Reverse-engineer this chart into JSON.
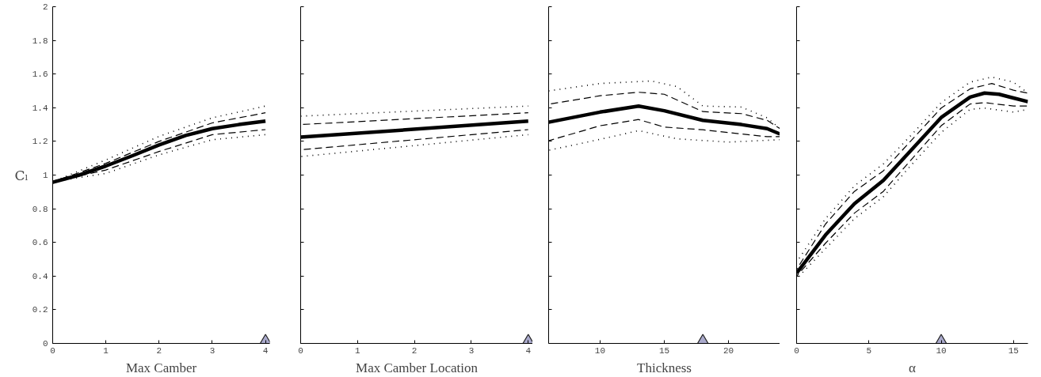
{
  "chart_data": [
    {
      "type": "line",
      "xlabel": "Max Camber",
      "ylabel": "Cₗ",
      "xlim": [
        0,
        4.08
      ],
      "xticks": [
        0,
        1,
        2,
        3,
        4
      ],
      "ylim": [
        0,
        2
      ],
      "yticks": [
        0,
        0.2,
        0.4,
        0.6,
        0.8,
        1,
        1.2,
        1.4,
        1.6,
        1.8,
        2
      ],
      "grid": false,
      "marker": "none",
      "series": [
        {
          "color": "#000000",
          "line_style": "solid",
          "x": [
            0,
            0.5,
            1,
            1.5,
            2,
            2.5,
            3,
            3.5,
            4
          ],
          "values": [
            0.957,
            1.0,
            1.054,
            1.115,
            1.179,
            1.235,
            1.276,
            1.3,
            1.32
          ]
        },
        {
          "color": "#000000",
          "line_style": "dashed",
          "x": [
            0,
            1,
            2,
            3,
            4
          ],
          "values": [
            0.96,
            1.07,
            1.2,
            1.31,
            1.37
          ]
        },
        {
          "color": "#000000",
          "line_style": "dashed",
          "x": [
            0,
            1,
            2,
            3,
            4
          ],
          "values": [
            0.96,
            1.03,
            1.14,
            1.24,
            1.27
          ]
        },
        {
          "color": "#000000",
          "line_style": "dotted",
          "x": [
            0,
            1,
            2,
            3,
            4
          ],
          "values": [
            0.96,
            1.09,
            1.23,
            1.34,
            1.41
          ]
        },
        {
          "color": "#000000",
          "line_style": "dotted",
          "x": [
            0,
            1,
            2,
            3,
            4
          ],
          "values": [
            0.96,
            1.01,
            1.12,
            1.21,
            1.24
          ]
        },
        {
          "type": "scatter",
          "marker": "triangle",
          "color": "#aaaacc",
          "x": [
            4
          ],
          "values": [
            0
          ]
        }
      ]
    },
    {
      "type": "line",
      "xlabel": "Max Camber Location",
      "xlim": [
        0,
        4.08
      ],
      "xticks": [
        0,
        1,
        2,
        3,
        4
      ],
      "ylim": [
        0,
        2
      ],
      "yticks": [
        0,
        0.2,
        0.4,
        0.6,
        0.8,
        1,
        1.2,
        1.4,
        1.6,
        1.8,
        2
      ],
      "tick_labels": "x",
      "grid": false,
      "marker": "none",
      "series": [
        {
          "color": "#000000",
          "line_style": "solid",
          "x": [
            0,
            4
          ],
          "values": [
            1.225,
            1.32
          ]
        },
        {
          "color": "#000000",
          "line_style": "dashed",
          "x": [
            0,
            4
          ],
          "values": [
            1.3,
            1.37
          ]
        },
        {
          "color": "#000000",
          "line_style": "dashed",
          "x": [
            0,
            4
          ],
          "values": [
            1.15,
            1.27
          ]
        },
        {
          "color": "#000000",
          "line_style": "dotted",
          "x": [
            0,
            4
          ],
          "values": [
            1.35,
            1.41
          ]
        },
        {
          "color": "#000000",
          "line_style": "dotted",
          "x": [
            0,
            4
          ],
          "values": [
            1.11,
            1.24
          ]
        },
        {
          "type": "scatter",
          "marker": "triangle",
          "color": "#aaaacc",
          "x": [
            4
          ],
          "values": [
            0
          ]
        }
      ]
    },
    {
      "type": "line",
      "xlabel": "Thickness",
      "xlim": [
        6,
        24
      ],
      "xticks": [
        10,
        15,
        20
      ],
      "ylim": [
        0,
        2
      ],
      "yticks": [
        0,
        0.2,
        0.4,
        0.6,
        0.8,
        1,
        1.2,
        1.4,
        1.6,
        1.8,
        2
      ],
      "tick_labels": "x",
      "grid": false,
      "marker": "none",
      "series": [
        {
          "color": "#000000",
          "line_style": "solid",
          "x": [
            6,
            10,
            13,
            15,
            18,
            21,
            23,
            24
          ],
          "values": [
            1.314,
            1.374,
            1.41,
            1.382,
            1.325,
            1.3,
            1.276,
            1.244
          ]
        },
        {
          "color": "#000000",
          "line_style": "dashed",
          "x": [
            6,
            10,
            13,
            15,
            18,
            21,
            23,
            24
          ],
          "values": [
            1.421,
            1.471,
            1.492,
            1.48,
            1.377,
            1.365,
            1.325,
            1.276
          ]
        },
        {
          "color": "#000000",
          "line_style": "dashed",
          "x": [
            6,
            10,
            13,
            15,
            18,
            21,
            23,
            24
          ],
          "values": [
            1.204,
            1.293,
            1.33,
            1.285,
            1.269,
            1.244,
            1.228,
            1.228
          ]
        },
        {
          "color": "#000000",
          "line_style": "dotted",
          "x": [
            6,
            10,
            14,
            16,
            18,
            21,
            23,
            24
          ],
          "values": [
            1.5,
            1.544,
            1.559,
            1.525,
            1.41,
            1.404,
            1.34,
            1.276
          ]
        },
        {
          "color": "#000000",
          "line_style": "dotted",
          "x": [
            6,
            10,
            13,
            16,
            20,
            24
          ],
          "values": [
            1.147,
            1.212,
            1.264,
            1.215,
            1.196,
            1.21
          ]
        },
        {
          "type": "scatter",
          "marker": "triangle",
          "color": "#aaaacc",
          "x": [
            18
          ],
          "values": [
            0
          ]
        }
      ]
    },
    {
      "type": "line",
      "xlabel": "α",
      "xlim": [
        0,
        16
      ],
      "xticks": [
        0,
        5,
        10,
        15
      ],
      "ylim": [
        0,
        2
      ],
      "yticks": [
        0,
        0.2,
        0.4,
        0.6,
        0.8,
        1,
        1.2,
        1.4,
        1.6,
        1.8,
        2
      ],
      "tick_labels": "x",
      "grid": false,
      "marker": "none",
      "series": [
        {
          "color": "#000000",
          "line_style": "solid",
          "x": [
            0,
            2,
            4,
            6,
            8,
            10,
            12,
            13,
            14,
            15,
            16
          ],
          "values": [
            0.417,
            0.644,
            0.83,
            0.968,
            1.155,
            1.342,
            1.463,
            1.487,
            1.48,
            1.458,
            1.436
          ]
        },
        {
          "color": "#000000",
          "line_style": "dashed",
          "x": [
            0,
            2,
            4,
            6,
            8,
            10,
            12,
            13.5,
            15,
            16
          ],
          "values": [
            0.44,
            0.709,
            0.903,
            1.025,
            1.212,
            1.398,
            1.512,
            1.544,
            1.504,
            1.487
          ]
        },
        {
          "color": "#000000",
          "line_style": "dashed",
          "x": [
            0,
            2,
            4,
            6,
            8,
            10,
            12,
            13,
            15,
            16
          ],
          "values": [
            0.4,
            0.595,
            0.774,
            0.903,
            1.098,
            1.293,
            1.422,
            1.43,
            1.41,
            1.41
          ]
        },
        {
          "color": "#000000",
          "line_style": "dotted",
          "x": [
            0,
            2,
            4,
            6,
            8,
            10,
            12,
            13.5,
            15,
            16
          ],
          "values": [
            0.482,
            0.741,
            0.936,
            1.066,
            1.244,
            1.43,
            1.552,
            1.582,
            1.552,
            1.487
          ]
        },
        {
          "color": "#000000",
          "line_style": "dotted",
          "x": [
            0,
            2,
            4,
            6,
            8,
            10,
            12,
            13,
            15,
            16
          ],
          "values": [
            0.384,
            0.563,
            0.741,
            0.871,
            1.066,
            1.253,
            1.39,
            1.398,
            1.374,
            1.39
          ]
        },
        {
          "type": "scatter",
          "marker": "triangle",
          "color": "#aaaacc",
          "x": [
            10
          ],
          "values": [
            0
          ]
        }
      ]
    }
  ]
}
